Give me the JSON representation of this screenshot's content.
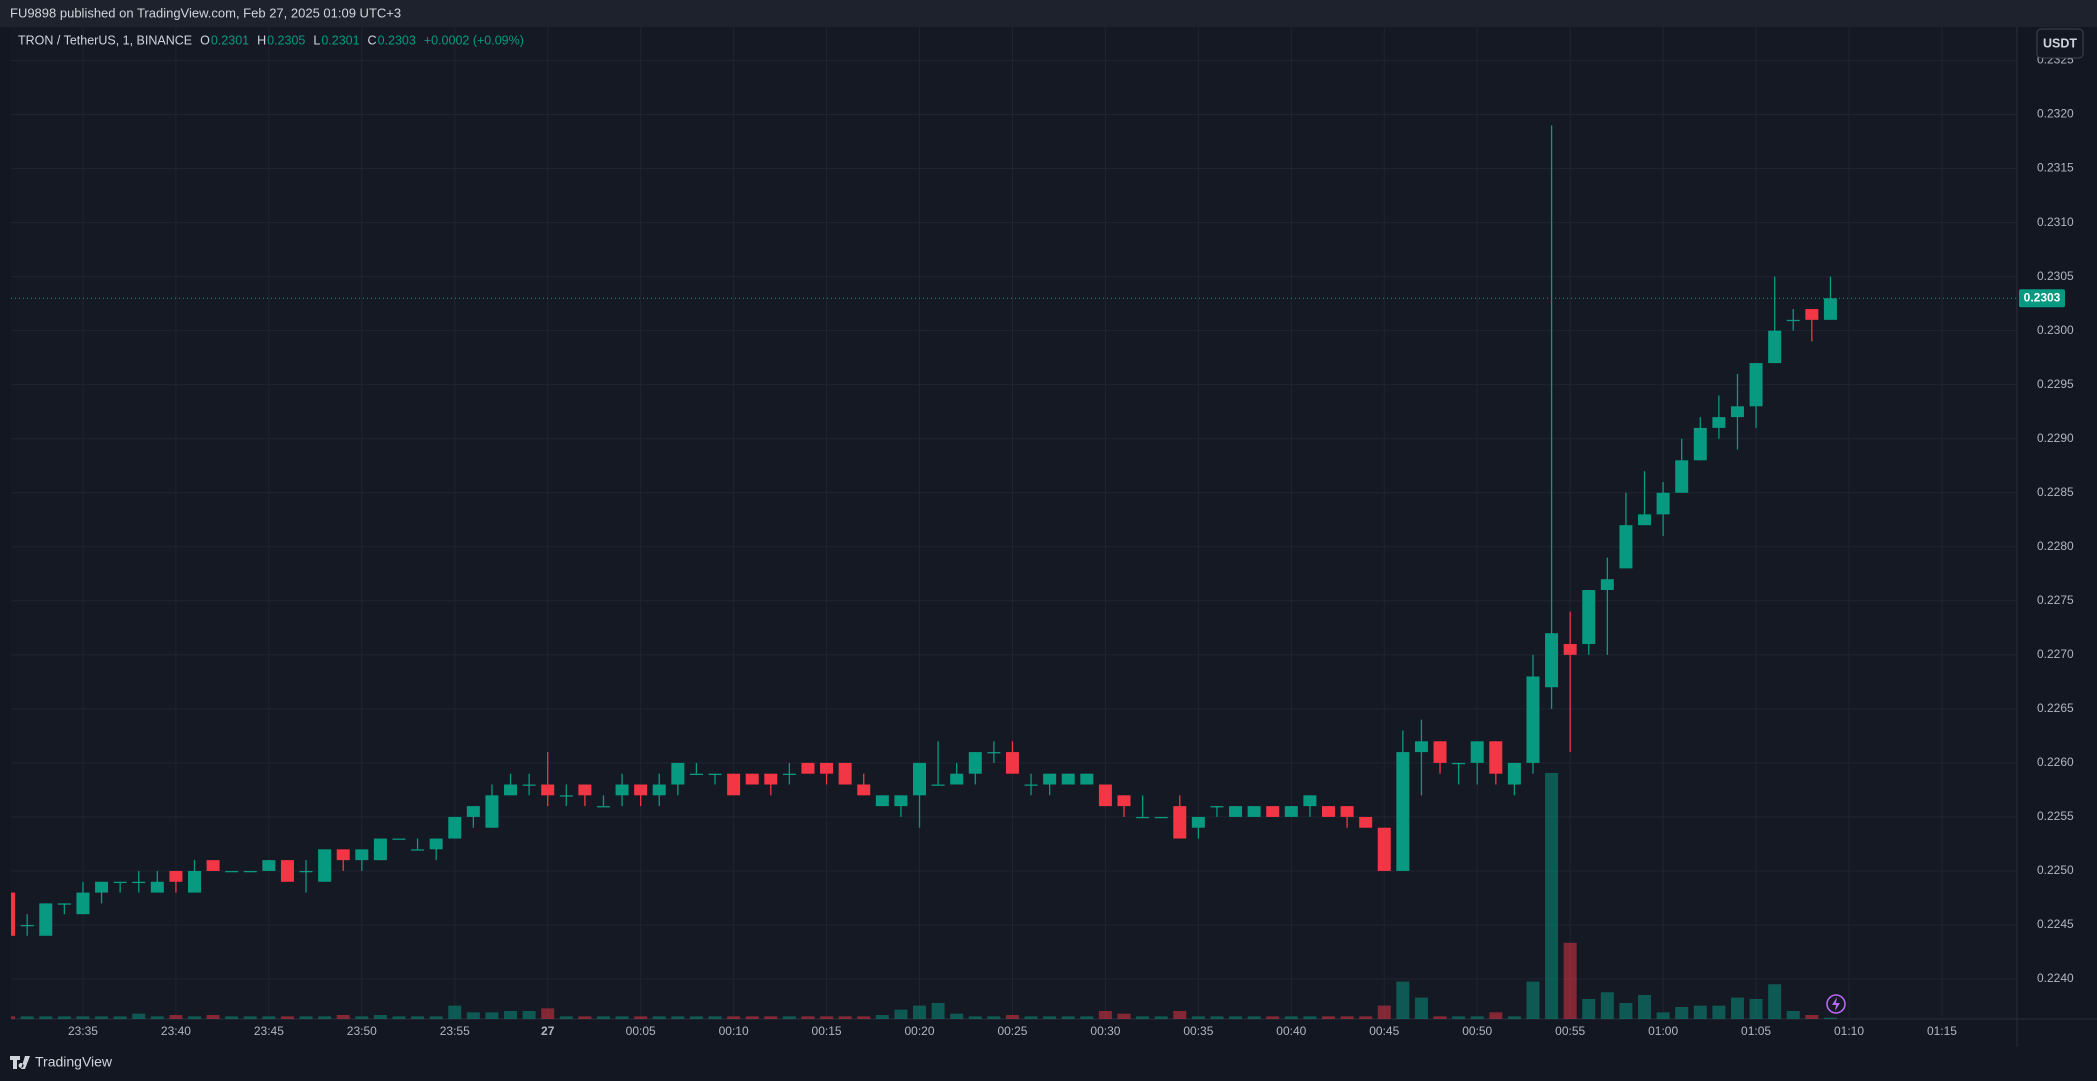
{
  "header": "FU9898 published on TradingView.com, Feb 27, 2025 01:09 UTC+3",
  "footer": "TradingView",
  "currency_button": "USDT",
  "chart_data": {
    "type": "candlestick",
    "title": "TRON / TetherUS, 1, BINANCE",
    "ohlc_legend": [
      {
        "key": "O",
        "value": "0.2301"
      },
      {
        "key": "H",
        "value": "0.2305"
      },
      {
        "key": "L",
        "value": "0.2301"
      },
      {
        "key": "C",
        "value": "0.2303"
      }
    ],
    "change": "+0.0002 (+0.09%)",
    "last_price": 0.2303,
    "last_price_label": "0.2303",
    "up_color": "#089981",
    "down_color": "#f23645",
    "grid": true,
    "x": [
      "23:31",
      "23:32",
      "23:33",
      "23:34",
      "23:35",
      "23:36",
      "23:37",
      "23:38",
      "23:39",
      "23:40",
      "23:41",
      "23:42",
      "23:43",
      "23:44",
      "23:45",
      "23:46",
      "23:47",
      "23:48",
      "23:49",
      "23:50",
      "23:51",
      "23:52",
      "23:53",
      "23:54",
      "23:55",
      "23:56",
      "23:57",
      "23:58",
      "23:59",
      "00:00",
      "00:01",
      "00:02",
      "00:03",
      "00:04",
      "00:05",
      "00:06",
      "00:07",
      "00:08",
      "00:09",
      "00:10",
      "00:11",
      "00:12",
      "00:13",
      "00:14",
      "00:15",
      "00:16",
      "00:17",
      "00:18",
      "00:19",
      "00:20",
      "00:21",
      "00:22",
      "00:23",
      "00:24",
      "00:25",
      "00:26",
      "00:27",
      "00:28",
      "00:29",
      "00:30",
      "00:31",
      "00:32",
      "00:33",
      "00:34",
      "00:35",
      "00:36",
      "00:37",
      "00:38",
      "00:39",
      "00:40",
      "00:41",
      "00:42",
      "00:43",
      "00:44",
      "00:45",
      "00:46",
      "00:47",
      "00:48",
      "00:49",
      "00:50",
      "00:51",
      "00:52",
      "00:53",
      "00:54",
      "00:55",
      "00:56",
      "00:57",
      "00:58",
      "00:59",
      "01:00",
      "01:01",
      "01:02",
      "01:03",
      "01:04",
      "01:05",
      "01:06",
      "01:07",
      "01:08",
      "01:09"
    ],
    "open": [
      0.2248,
      0.2245,
      0.2244,
      0.2247,
      0.2246,
      0.2248,
      0.2249,
      0.2249,
      0.2248,
      0.225,
      0.2248,
      0.2251,
      0.225,
      0.225,
      0.225,
      0.2251,
      0.225,
      0.2249,
      0.2252,
      0.2251,
      0.2251,
      0.2253,
      0.2252,
      0.2252,
      0.2253,
      0.2255,
      0.2254,
      0.2257,
      0.2258,
      0.2258,
      0.2257,
      0.2258,
      0.2256,
      0.2257,
      0.2258,
      0.2257,
      0.2258,
      0.2259,
      0.2259,
      0.2259,
      0.2259,
      0.2259,
      0.2259,
      0.226,
      0.226,
      0.226,
      0.2258,
      0.2256,
      0.2256,
      0.2257,
      0.2258,
      0.2258,
      0.2259,
      0.2261,
      0.2261,
      0.2258,
      0.2258,
      0.2258,
      0.2258,
      0.2258,
      0.2257,
      0.2255,
      0.2255,
      0.2256,
      0.2254,
      0.2256,
      0.2255,
      0.2255,
      0.2256,
      0.2255,
      0.2256,
      0.2256,
      0.2256,
      0.2255,
      0.2254,
      0.225,
      0.2261,
      0.2262,
      0.226,
      0.226,
      0.2262,
      0.2258,
      0.226,
      0.2267,
      0.2271,
      0.2271,
      0.2276,
      0.2278,
      0.2282,
      0.2283,
      0.2285,
      0.2288,
      0.2291,
      0.2292,
      0.2293,
      0.2297,
      0.2301,
      0.2302,
      0.2301
    ],
    "high": [
      0.2248,
      0.2246,
      0.2247,
      0.2247,
      0.2249,
      0.2249,
      0.2249,
      0.225,
      0.225,
      0.225,
      0.2251,
      0.2251,
      0.225,
      0.225,
      0.2251,
      0.2251,
      0.2251,
      0.2252,
      0.2252,
      0.2252,
      0.2253,
      0.2253,
      0.2253,
      0.2253,
      0.2255,
      0.2256,
      0.2258,
      0.2259,
      0.2259,
      0.2261,
      0.2258,
      0.2258,
      0.2257,
      0.2259,
      0.2258,
      0.2259,
      0.226,
      0.226,
      0.2259,
      0.2259,
      0.2259,
      0.2259,
      0.226,
      0.226,
      0.226,
      0.226,
      0.2259,
      0.2257,
      0.2257,
      0.226,
      0.2262,
      0.226,
      0.2261,
      0.2262,
      0.2262,
      0.2259,
      0.2259,
      0.2259,
      0.2259,
      0.2258,
      0.2257,
      0.2257,
      0.2255,
      0.2257,
      0.2255,
      0.2256,
      0.2256,
      0.2256,
      0.2256,
      0.2256,
      0.2257,
      0.2256,
      0.2256,
      0.2255,
      0.2254,
      0.2263,
      0.2264,
      0.2262,
      0.226,
      0.2262,
      0.2262,
      0.226,
      0.227,
      0.2319,
      0.2274,
      0.2276,
      0.2279,
      0.2285,
      0.2287,
      0.2286,
      0.229,
      0.2292,
      0.2294,
      0.2296,
      0.2297,
      0.2305,
      0.2302,
      0.2302,
      0.2305
    ],
    "low": [
      0.2244,
      0.2244,
      0.2244,
      0.2246,
      0.2246,
      0.2247,
      0.2248,
      0.2248,
      0.2248,
      0.2248,
      0.2248,
      0.225,
      0.225,
      0.225,
      0.225,
      0.2249,
      0.2248,
      0.2249,
      0.225,
      0.225,
      0.2251,
      0.2253,
      0.2252,
      0.2251,
      0.2253,
      0.2254,
      0.2254,
      0.2257,
      0.2257,
      0.2256,
      0.2256,
      0.2256,
      0.2256,
      0.2256,
      0.2256,
      0.2256,
      0.2257,
      0.2259,
      0.2258,
      0.2257,
      0.2258,
      0.2257,
      0.2258,
      0.2259,
      0.2258,
      0.2258,
      0.2257,
      0.2256,
      0.2255,
      0.2254,
      0.2258,
      0.2258,
      0.2258,
      0.226,
      0.2259,
      0.2257,
      0.2257,
      0.2258,
      0.2258,
      0.2256,
      0.2255,
      0.2255,
      0.2255,
      0.2253,
      0.2253,
      0.2255,
      0.2255,
      0.2255,
      0.2255,
      0.2255,
      0.2255,
      0.2255,
      0.2254,
      0.2254,
      0.225,
      0.225,
      0.2257,
      0.2259,
      0.2258,
      0.2258,
      0.2258,
      0.2257,
      0.2259,
      0.2265,
      0.2261,
      0.227,
      0.227,
      0.2278,
      0.2282,
      0.2281,
      0.2285,
      0.2288,
      0.229,
      0.2289,
      0.2291,
      0.2297,
      0.23,
      0.2299,
      0.2301
    ],
    "close": [
      0.2244,
      0.2245,
      0.2247,
      0.2247,
      0.2248,
      0.2249,
      0.2249,
      0.2249,
      0.2249,
      0.2249,
      0.225,
      0.225,
      0.225,
      0.225,
      0.2251,
      0.2249,
      0.225,
      0.2252,
      0.2251,
      0.2252,
      0.2253,
      0.2253,
      0.2252,
      0.2253,
      0.2255,
      0.2256,
      0.2257,
      0.2258,
      0.2258,
      0.2257,
      0.2257,
      0.2257,
      0.2256,
      0.2258,
      0.2257,
      0.2258,
      0.226,
      0.2259,
      0.2259,
      0.2257,
      0.2258,
      0.2258,
      0.2259,
      0.2259,
      0.2259,
      0.2258,
      0.2257,
      0.2257,
      0.2257,
      0.226,
      0.2258,
      0.2259,
      0.2261,
      0.2261,
      0.2259,
      0.2258,
      0.2259,
      0.2259,
      0.2259,
      0.2256,
      0.2256,
      0.2255,
      0.2255,
      0.2253,
      0.2255,
      0.2256,
      0.2256,
      0.2256,
      0.2255,
      0.2256,
      0.2257,
      0.2255,
      0.2255,
      0.2254,
      0.225,
      0.2261,
      0.2262,
      0.226,
      0.226,
      0.2262,
      0.2259,
      0.226,
      0.2268,
      0.2272,
      0.227,
      0.2276,
      0.2277,
      0.2282,
      0.2283,
      0.2285,
      0.2288,
      0.2291,
      0.2292,
      0.2293,
      0.2297,
      0.23,
      0.2301,
      0.2301,
      0.2303
    ],
    "volume": [
      2,
      2,
      2,
      2,
      2,
      2,
      2,
      4,
      2,
      3,
      2,
      3,
      2,
      2,
      2,
      2,
      2,
      2,
      3,
      2,
      3,
      2,
      2,
      2,
      10,
      5,
      5,
      6,
      6,
      8,
      2,
      2,
      2,
      2,
      2,
      2,
      2,
      2,
      2,
      2,
      2,
      2,
      2,
      2,
      2,
      2,
      2,
      3,
      7,
      10,
      12,
      4,
      2,
      2,
      3,
      2,
      2,
      2,
      2,
      6,
      4,
      2,
      2,
      6,
      2,
      2,
      2,
      2,
      2,
      2,
      2,
      2,
      2,
      2,
      10,
      28,
      16,
      2,
      2,
      2,
      5,
      2,
      28,
      184,
      57,
      15,
      20,
      12,
      18,
      5,
      9,
      10,
      10,
      16,
      15,
      26,
      6,
      3,
      1
    ],
    "ylim": [
      0.22363,
      0.23281
    ],
    "yticks": [
      {
        "value": 0.224,
        "label": "0.2240"
      },
      {
        "value": 0.2245,
        "label": "0.2245"
      },
      {
        "value": 0.225,
        "label": "0.2250"
      },
      {
        "value": 0.2255,
        "label": "0.2255"
      },
      {
        "value": 0.226,
        "label": "0.2260"
      },
      {
        "value": 0.2265,
        "label": "0.2265"
      },
      {
        "value": 0.227,
        "label": "0.2270"
      },
      {
        "value": 0.2275,
        "label": "0.2275"
      },
      {
        "value": 0.228,
        "label": "0.2280"
      },
      {
        "value": 0.2285,
        "label": "0.2285"
      },
      {
        "value": 0.229,
        "label": "0.2290"
      },
      {
        "value": 0.2295,
        "label": "0.2295"
      },
      {
        "value": 0.23,
        "label": "0.2300"
      },
      {
        "value": 0.2305,
        "label": "0.2305"
      },
      {
        "value": 0.231,
        "label": "0.2310"
      },
      {
        "value": 0.2315,
        "label": "0.2315"
      },
      {
        "value": 0.232,
        "label": "0.2320"
      },
      {
        "value": 0.2325,
        "label": "0.2325"
      }
    ],
    "xticks": [
      "23:35",
      "23:40",
      "23:45",
      "23:50",
      "23:55",
      {
        "value": "00:00",
        "label": "27"
      },
      "00:05",
      "00:10",
      "00:15",
      "00:20",
      "00:25",
      "00:30",
      "00:35",
      "00:40",
      "00:45",
      "00:50",
      "00:55",
      "01:00",
      "01:05",
      "01:10",
      "01:15"
    ]
  }
}
